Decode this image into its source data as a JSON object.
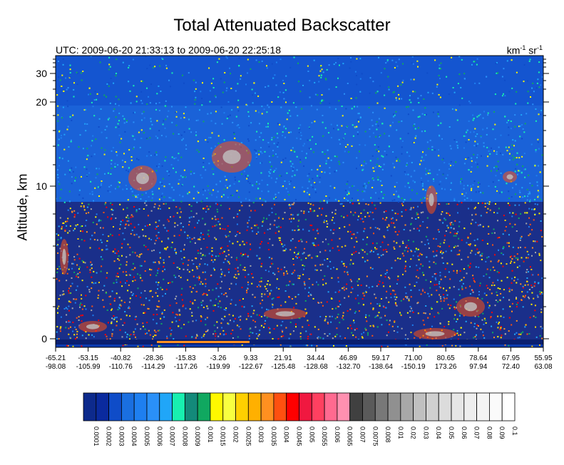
{
  "chart_data": {
    "type": "heatmap",
    "title": "Total Attenuated Backscatter",
    "subtitle": "UTC: 2009-06-20 21:33:13 to 2009-06-20 22:25:18",
    "units_base": "km",
    "units_sup1": "-1",
    "units_mid": " sr",
    "units_sup2": "-1",
    "ylabel": "Altitude, km",
    "yticks": [
      {
        "label": "0",
        "value": 0
      },
      {
        "label": "10",
        "value": 10
      },
      {
        "label": "20",
        "value": 20
      },
      {
        "label": "30",
        "value": 30
      }
    ],
    "xticks": [
      {
        "lat": "-65.21",
        "lon": "-98.08"
      },
      {
        "lat": "-53.15",
        "lon": "-105.99"
      },
      {
        "lat": "-40.82",
        "lon": "-110.76"
      },
      {
        "lat": "-28.36",
        "lon": "-114.29"
      },
      {
        "lat": "-15.83",
        "lon": "-117.26"
      },
      {
        "lat": "-3.26",
        "lon": "-119.99"
      },
      {
        "lat": "9.33",
        "lon": "-122.67"
      },
      {
        "lat": "21.91",
        "lon": "-125.48"
      },
      {
        "lat": "34.44",
        "lon": "-128.68"
      },
      {
        "lat": "46.89",
        "lon": "-132.70"
      },
      {
        "lat": "59.17",
        "lon": "-138.64"
      },
      {
        "lat": "71.00",
        "lon": "-150.19"
      },
      {
        "lat": "80.65",
        "lon": "173.26"
      },
      {
        "lat": "78.64",
        "lon": "97.94"
      },
      {
        "lat": "67.95",
        "lon": "72.40"
      },
      {
        "lat": "55.95",
        "lon": "63.08"
      }
    ],
    "colorbar": {
      "labels": [
        "0.0001",
        "0.0002",
        "0.0003",
        "0.0004",
        "0.0005",
        "0.0006",
        "0.0007",
        "0.0008",
        "0.0009",
        "0.001",
        "0.0015",
        "0.002",
        "0.0025",
        "0.003",
        "0.0035",
        "0.004",
        "0.0045",
        "0.005",
        "0.0055",
        "0.006",
        "0.0065",
        "0.007",
        "0.0075",
        "0.008",
        "0.01",
        "0.02",
        "0.03",
        "0.04",
        "0.05",
        "0.06",
        "0.07",
        "0.08",
        "0.09",
        "0.1"
      ],
      "colors": [
        "#0d2a8c",
        "#0a2a9e",
        "#0f4cc8",
        "#1a6fe0",
        "#1e7ff0",
        "#2a90f8",
        "#20a6f8",
        "#18f0b0",
        "#138a7a",
        "#10a860",
        "#fff800",
        "#f8ff40",
        "#ffd000",
        "#ffb000",
        "#ff9020",
        "#ff5010",
        "#ff0000",
        "#f01840",
        "#ff4060",
        "#ff6a90",
        "#ff90b0",
        "#404040",
        "#5a5a5a",
        "#787878",
        "#909090",
        "#a8a8a8",
        "#c0c0c0",
        "#d0d0d0",
        "#dcdcdc",
        "#e6e6e6",
        "#eeeeee",
        "#f4f4f4",
        "#fafafa",
        "#ffffff"
      ]
    }
  }
}
